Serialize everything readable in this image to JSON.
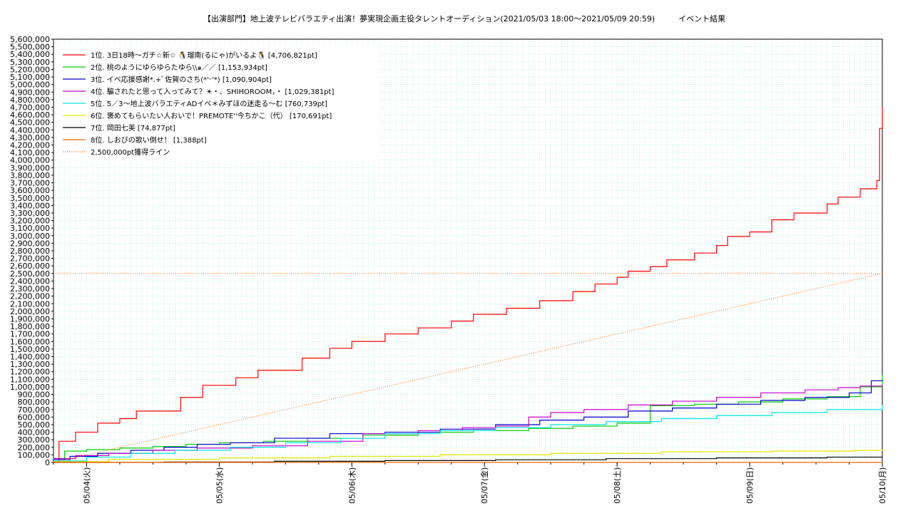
{
  "chart_data": {
    "type": "line",
    "title": "【出演部門】地上波テレビバラエティ出演！夢実現企画主役タレントオーディション(2021/05/03 18:00〜2021/05/09 20:59)　　　イベント結果",
    "xlabel": "",
    "ylabel": "",
    "x_tick_labels": [
      "05/04(火)",
      "05/05(水)",
      "05/06(木)",
      "05/07(金)",
      "05/08(土)",
      "05/09(日)",
      "05/10(月)"
    ],
    "xlim_hours": [
      0,
      150
    ],
    "ylim": [
      0,
      5600000
    ],
    "y_tick_step": 100000,
    "grid": true,
    "legend_position": "top-left",
    "series": [
      {
        "name": "1位. 3日18時〜ガチ☆新☆ 🐧瑠南(るにゃ)がいるよ🐧 [4,706,821pt]",
        "color": "#ff0000",
        "type": "step",
        "x": [
          0,
          1,
          4,
          8,
          12,
          15,
          23,
          27,
          33,
          37,
          45,
          50,
          54,
          60,
          66,
          72,
          76,
          82,
          88,
          94,
          98,
          102,
          104,
          108,
          111,
          116,
          120,
          122,
          126,
          130,
          134,
          140,
          142,
          146,
          149,
          149.5,
          150
        ],
        "y": [
          0,
          280000,
          400000,
          520000,
          580000,
          680000,
          860000,
          1020000,
          1120000,
          1220000,
          1380000,
          1510000,
          1600000,
          1700000,
          1780000,
          1870000,
          1960000,
          2040000,
          2140000,
          2260000,
          2360000,
          2450000,
          2530000,
          2590000,
          2680000,
          2770000,
          2870000,
          2990000,
          3050000,
          3210000,
          3300000,
          3420000,
          3510000,
          3620000,
          3730000,
          4420000,
          4706821
        ]
      },
      {
        "name": "2位. 桃のようにゆらゆらたゆら\\\\๑／／ [1,153,934pt]",
        "color": "#00cc00",
        "type": "step",
        "x": [
          0,
          2,
          6,
          12,
          18,
          24,
          30,
          38,
          46,
          56,
          66,
          76,
          86,
          94,
          102,
          108,
          116,
          124,
          132,
          140,
          146,
          150
        ],
        "y": [
          50000,
          150000,
          170000,
          190000,
          210000,
          240000,
          260000,
          280000,
          320000,
          360000,
          400000,
          420000,
          450000,
          480000,
          520000,
          750000,
          770000,
          800000,
          840000,
          870000,
          1000000,
          1153934
        ]
      },
      {
        "name": "3位. イベ応援感謝*.+ﾟ佐賀のさち(*'ᵕ'*) [1,090,904pt]",
        "color": "#0000cc",
        "type": "step",
        "x": [
          0,
          3,
          8,
          14,
          20,
          26,
          32,
          40,
          50,
          60,
          70,
          80,
          88,
          96,
          104,
          112,
          120,
          128,
          136,
          144,
          148,
          150
        ],
        "y": [
          40000,
          80000,
          120000,
          160000,
          200000,
          240000,
          260000,
          320000,
          380000,
          400000,
          440000,
          500000,
          560000,
          600000,
          680000,
          720000,
          770000,
          820000,
          860000,
          920000,
          1080000,
          1090904
        ]
      },
      {
        "name": "4位. 騙されたと思って入ってみて？☀・、SHIHOROOM，・ [1,029,381pt]",
        "color": "#cc00cc",
        "type": "step",
        "x": [
          0,
          4,
          10,
          18,
          26,
          36,
          46,
          56,
          66,
          74,
          80,
          86,
          90,
          96,
          104,
          112,
          120,
          128,
          136,
          142,
          146,
          150
        ],
        "y": [
          50000,
          90000,
          120000,
          160000,
          190000,
          220000,
          280000,
          380000,
          420000,
          460000,
          480000,
          600000,
          660000,
          700000,
          760000,
          810000,
          860000,
          920000,
          960000,
          990000,
          1010000,
          1029381
        ]
      },
      {
        "name": "5位. 5／3〜地上波バラエティADイベ＊みずほの迷走る〜む [760,739pt]",
        "color": "#00e6e6",
        "type": "step",
        "x": [
          0,
          6,
          14,
          22,
          32,
          42,
          52,
          60,
          70,
          80,
          90,
          100,
          110,
          120,
          130,
          140,
          150
        ],
        "y": [
          20000,
          70000,
          120000,
          160000,
          200000,
          260000,
          320000,
          380000,
          420000,
          460000,
          500000,
          540000,
          580000,
          620000,
          660000,
          700000,
          760739
        ]
      },
      {
        "name": "6位. 褒めてもらいたい人おいで！PREMOTE''今ちかこ（代） [170,691pt]",
        "color": "#e6e600",
        "type": "step",
        "x": [
          0,
          10,
          30,
          50,
          70,
          90,
          110,
          130,
          145,
          150
        ],
        "y": [
          10000,
          40000,
          60000,
          80000,
          100000,
          120000,
          140000,
          150000,
          160000,
          170691
        ]
      },
      {
        "name": "7位. 岡田七美 [74,877pt]",
        "color": "#000000",
        "type": "step",
        "x": [
          0,
          20,
          40,
          60,
          80,
          100,
          120,
          140,
          150
        ],
        "y": [
          0,
          5000,
          15000,
          25000,
          35000,
          50000,
          60000,
          70000,
          74877
        ]
      },
      {
        "name": "8位. しおぴの歌い倒せ！ [1,388pt]",
        "color": "#ff6600",
        "type": "step",
        "x": [
          0,
          150
        ],
        "y": [
          0,
          1388
        ]
      },
      {
        "name": "2,500,000pt獲得ライン",
        "color": "#ff6600",
        "type": "dotted-linear",
        "x": [
          0,
          150
        ],
        "y": [
          0,
          2500000
        ]
      }
    ],
    "reference_line": {
      "y": 2500000,
      "color": "#ff6600",
      "style": "dotted"
    }
  }
}
